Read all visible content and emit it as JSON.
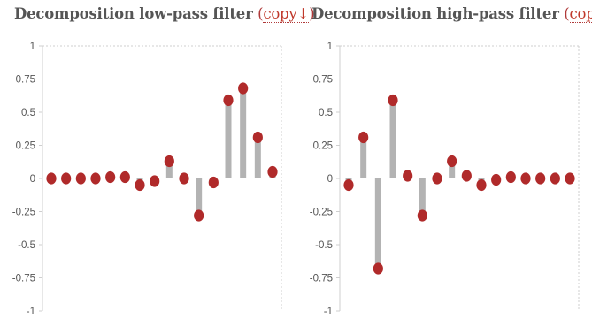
{
  "panels": [
    {
      "title": "Decomposition low-pass filter",
      "copy_open": "(",
      "copy_label": "copy",
      "copy_arrow": "↓",
      "copy_close": ")"
    },
    {
      "title": "Decomposition high-pass filter",
      "copy_open": "(",
      "copy_label": "copy",
      "copy_arrow": "↓",
      "copy_close": ")"
    }
  ],
  "colors": {
    "stem": "#b3b3b3",
    "marker": "#b02a2a",
    "axis": "#cfcfcf",
    "title": "#555555"
  },
  "chart_data": [
    {
      "type": "stem",
      "title": "Decomposition low-pass filter",
      "ylim": [
        -1,
        1
      ],
      "yticks": [
        1,
        0.75,
        0.5,
        0.25,
        0,
        -0.25,
        -0.5,
        -0.75,
        -1
      ],
      "ytick_labels": [
        "1",
        "0.75",
        "0.5",
        "0.25",
        "0",
        "-0.25",
        "-0.5",
        "-0.75",
        "-1"
      ],
      "grid": false,
      "values": [
        0.0,
        0.0,
        0.0,
        0.0,
        0.01,
        0.01,
        -0.05,
        -0.02,
        0.13,
        0.0,
        -0.28,
        -0.03,
        0.59,
        0.68,
        0.31,
        0.05
      ]
    },
    {
      "type": "stem",
      "title": "Decomposition high-pass filter",
      "ylim": [
        -1,
        1
      ],
      "yticks": [
        1,
        0.75,
        0.5,
        0.25,
        0,
        -0.25,
        -0.5,
        -0.75,
        -1
      ],
      "ytick_labels": [
        "1",
        "0.75",
        "0.5",
        "0.25",
        "0",
        "-0.25",
        "-0.5",
        "-0.75",
        "-1"
      ],
      "grid": false,
      "values": [
        -0.05,
        0.31,
        -0.68,
        0.59,
        0.02,
        -0.28,
        0.0,
        0.13,
        0.02,
        -0.05,
        -0.01,
        0.01,
        0.0,
        0.0,
        0.0,
        0.0
      ]
    }
  ]
}
